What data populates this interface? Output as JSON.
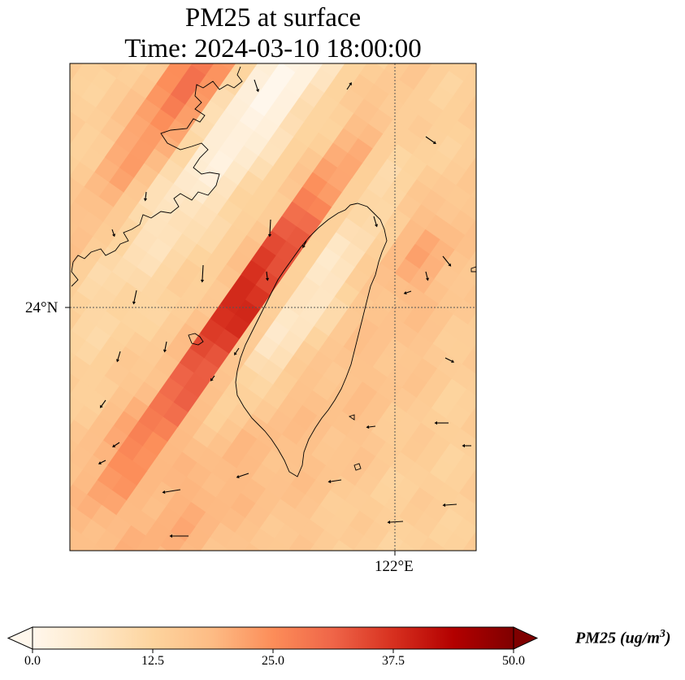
{
  "figure": {
    "title_line1": "PM25 at surface",
    "title_line2": "Time: 2024-03-10 18:00:00"
  },
  "axes": {
    "lat_gridline_label": "24°N",
    "lon_gridline_label": "122°E"
  },
  "colorbar": {
    "label_text": "PM25 (ug/m",
    "label_superscript": "3",
    "label_close": ")",
    "ticks": [
      "0.0",
      "12.5",
      "25.0",
      "37.5",
      "50.0"
    ],
    "min": 0,
    "max": 50,
    "extend": "both",
    "colormap": [
      "#fff7ec",
      "#fee8c8",
      "#fdd49e",
      "#fdbb84",
      "#fc8d59",
      "#ef6548",
      "#d7301f",
      "#b30000",
      "#7f0000"
    ]
  },
  "map_style": {
    "background_level": 13,
    "coastline_color": "#000000",
    "gridline_color": "#555555"
  }
}
